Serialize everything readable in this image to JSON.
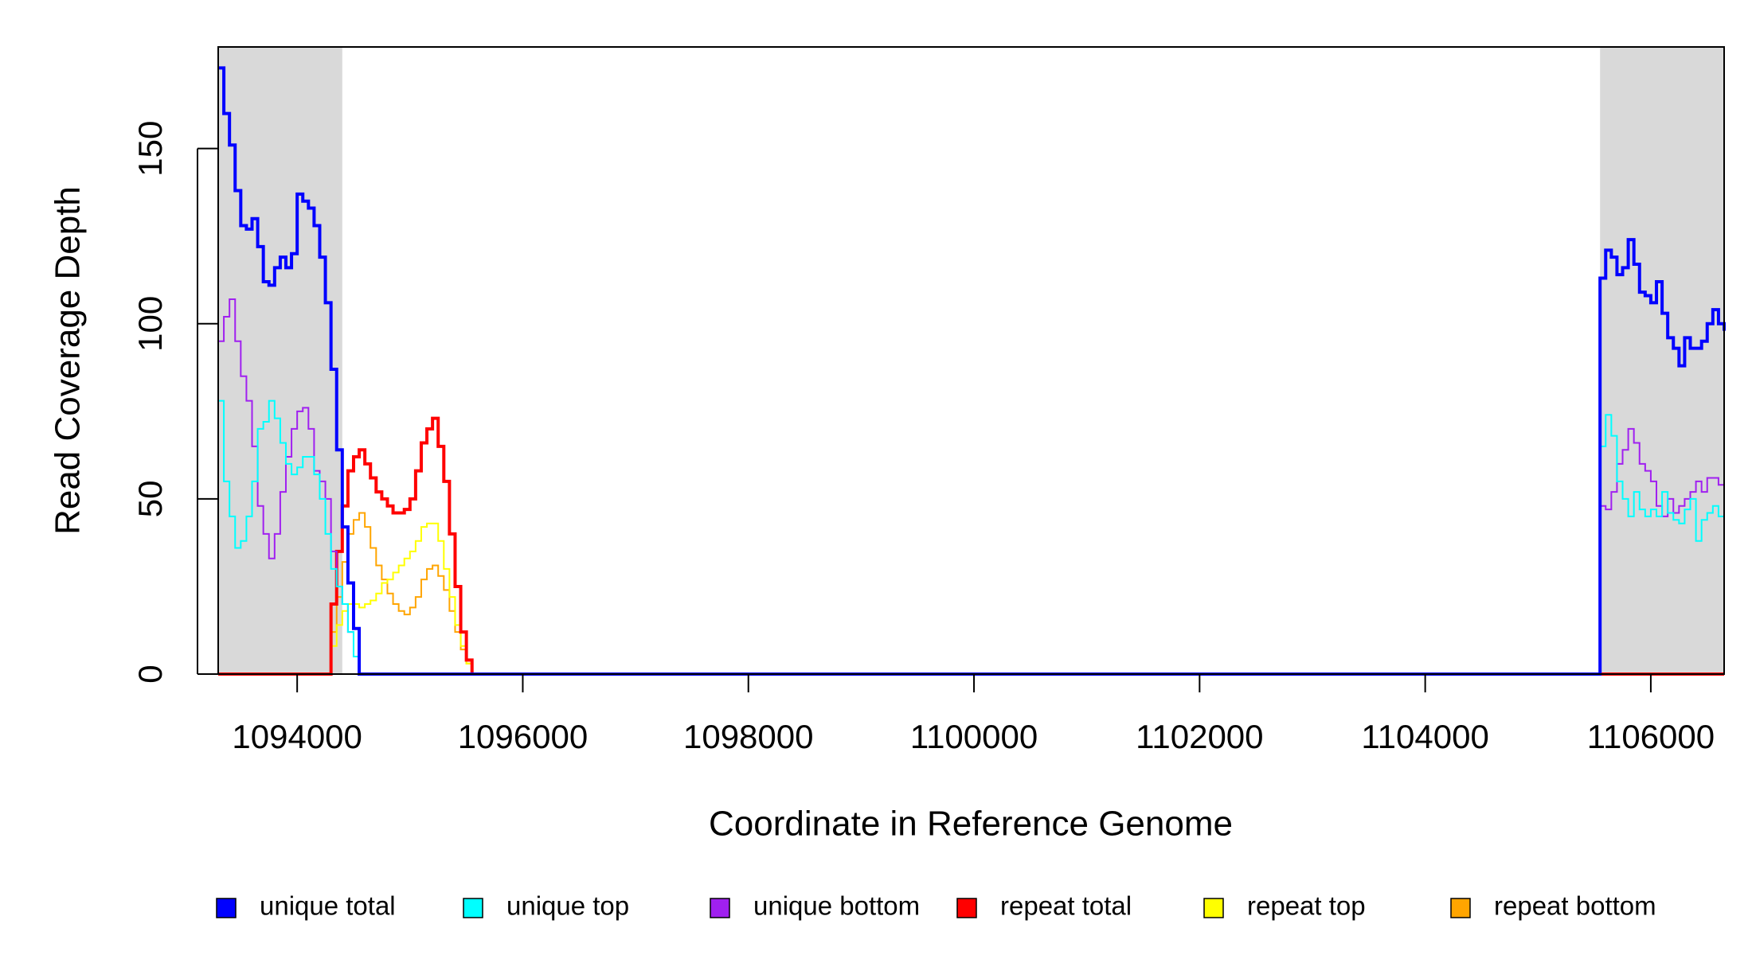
{
  "chart_data": {
    "type": "line",
    "step": true,
    "x_label": "Coordinate in Reference Genome",
    "y_label": "Read Coverage Depth",
    "xlim": [
      1093300,
      1106650
    ],
    "ylim": [
      0,
      179
    ],
    "xticks": [
      1094000,
      1096000,
      1098000,
      1100000,
      1102000,
      1104000,
      1106000
    ],
    "yticks": [
      0,
      50,
      100,
      150
    ],
    "shaded_regions": [
      {
        "start": 1093300,
        "end": 1094400
      },
      {
        "start": 1105550,
        "end": 1106650
      }
    ],
    "shade_color": "#d9d9d9",
    "legend": "bottom",
    "x": [
      1093300,
      1093350,
      1093400,
      1093450,
      1093500,
      1093550,
      1093600,
      1093650,
      1093700,
      1093750,
      1093800,
      1093850,
      1093900,
      1093950,
      1094000,
      1094050,
      1094100,
      1094150,
      1094200,
      1094250,
      1094300,
      1094350,
      1094400,
      1094450,
      1094500,
      1094550,
      1094600,
      1094650,
      1094700,
      1094750,
      1094800,
      1094850,
      1094900,
      1094950,
      1095000,
      1095050,
      1095100,
      1095150,
      1095200,
      1095250,
      1095300,
      1095350,
      1095400,
      1095450,
      1095500,
      1095550,
      1095600,
      1105550,
      1105600,
      1105650,
      1105700,
      1105750,
      1105800,
      1105850,
      1105900,
      1105950,
      1106000,
      1106050,
      1106100,
      1106150,
      1106200,
      1106250,
      1106300,
      1106350,
      1106400,
      1106450,
      1106500,
      1106550,
      1106600,
      1106650
    ],
    "series": [
      {
        "name": "unique total",
        "color": "#0000ff",
        "values": [
          173,
          160,
          151,
          138,
          128,
          127,
          130,
          122,
          112,
          111,
          116,
          119,
          116,
          120,
          137,
          135,
          133,
          128,
          119,
          106,
          87,
          64,
          42,
          26,
          13,
          0,
          0,
          0,
          0,
          0,
          0,
          0,
          0,
          0,
          0,
          0,
          0,
          0,
          0,
          0,
          0,
          0,
          0,
          0,
          0,
          0,
          0,
          113,
          121,
          119,
          114,
          116,
          124,
          117,
          109,
          108,
          106,
          112,
          103,
          96,
          93,
          88,
          96,
          93,
          93,
          95,
          100,
          104,
          100,
          98
        ]
      },
      {
        "name": "unique top",
        "color": "#00ffff",
        "values": [
          78,
          55,
          45,
          36,
          38,
          45,
          55,
          70,
          72,
          78,
          73,
          66,
          60,
          57,
          59,
          62,
          62,
          57,
          50,
          40,
          30,
          25,
          20,
          12,
          5,
          0,
          0,
          0,
          0,
          0,
          0,
          0,
          0,
          0,
          0,
          0,
          0,
          0,
          0,
          0,
          0,
          0,
          0,
          0,
          0,
          0,
          0,
          65,
          74,
          68,
          55,
          50,
          45,
          52,
          47,
          45,
          47,
          45,
          52,
          46,
          44,
          43,
          47,
          50,
          38,
          44,
          46,
          48,
          45,
          45
        ]
      },
      {
        "name": "unique bottom",
        "color": "#a020f0",
        "values": [
          95,
          102,
          107,
          95,
          85,
          78,
          65,
          48,
          40,
          33,
          40,
          52,
          62,
          70,
          75,
          76,
          70,
          58,
          55,
          50,
          35,
          25,
          20,
          12,
          5,
          0,
          0,
          0,
          0,
          0,
          0,
          0,
          0,
          0,
          0,
          0,
          0,
          0,
          0,
          0,
          0,
          0,
          0,
          0,
          0,
          0,
          0,
          48,
          47,
          52,
          60,
          64,
          70,
          66,
          60,
          58,
          55,
          48,
          45,
          50,
          46,
          48,
          50,
          52,
          55,
          52,
          56,
          56,
          54,
          54
        ]
      },
      {
        "name": "repeat total",
        "color": "#ff0000",
        "values": [
          0,
          0,
          0,
          0,
          0,
          0,
          0,
          0,
          0,
          0,
          0,
          0,
          0,
          0,
          0,
          0,
          0,
          0,
          0,
          0,
          20,
          35,
          48,
          58,
          62,
          64,
          60,
          56,
          52,
          50,
          48,
          46,
          46,
          47,
          50,
          58,
          66,
          70,
          73,
          65,
          55,
          40,
          25,
          12,
          4,
          0,
          0,
          0,
          0,
          0,
          0,
          0,
          0,
          0,
          0,
          0,
          0,
          0,
          0,
          0,
          0,
          0,
          0,
          0,
          0,
          0,
          0,
          0,
          0,
          0
        ]
      },
      {
        "name": "repeat top",
        "color": "#ffff00",
        "values": [
          0,
          0,
          0,
          0,
          0,
          0,
          0,
          0,
          0,
          0,
          0,
          0,
          0,
          0,
          0,
          0,
          0,
          0,
          0,
          0,
          8,
          14,
          18,
          20,
          20,
          19,
          20,
          21,
          23,
          26,
          27,
          29,
          31,
          33,
          35,
          38,
          42,
          43,
          43,
          38,
          30,
          22,
          14,
          8,
          3,
          0,
          0,
          0,
          0,
          0,
          0,
          0,
          0,
          0,
          0,
          0,
          0,
          0,
          0,
          0,
          0,
          0,
          0,
          0,
          0,
          0,
          0,
          0,
          0,
          0
        ]
      },
      {
        "name": "repeat bottom",
        "color": "#ffa500",
        "values": [
          0,
          0,
          0,
          0,
          0,
          0,
          0,
          0,
          0,
          0,
          0,
          0,
          0,
          0,
          0,
          0,
          0,
          0,
          0,
          0,
          12,
          22,
          32,
          40,
          44,
          46,
          42,
          36,
          31,
          27,
          23,
          20,
          18,
          17,
          19,
          22,
          27,
          30,
          31,
          28,
          24,
          18,
          12,
          7,
          3,
          0,
          0,
          0,
          0,
          0,
          0,
          0,
          0,
          0,
          0,
          0,
          0,
          0,
          0,
          0,
          0,
          0,
          0,
          0,
          0,
          0,
          0,
          0,
          0,
          0
        ]
      }
    ]
  }
}
